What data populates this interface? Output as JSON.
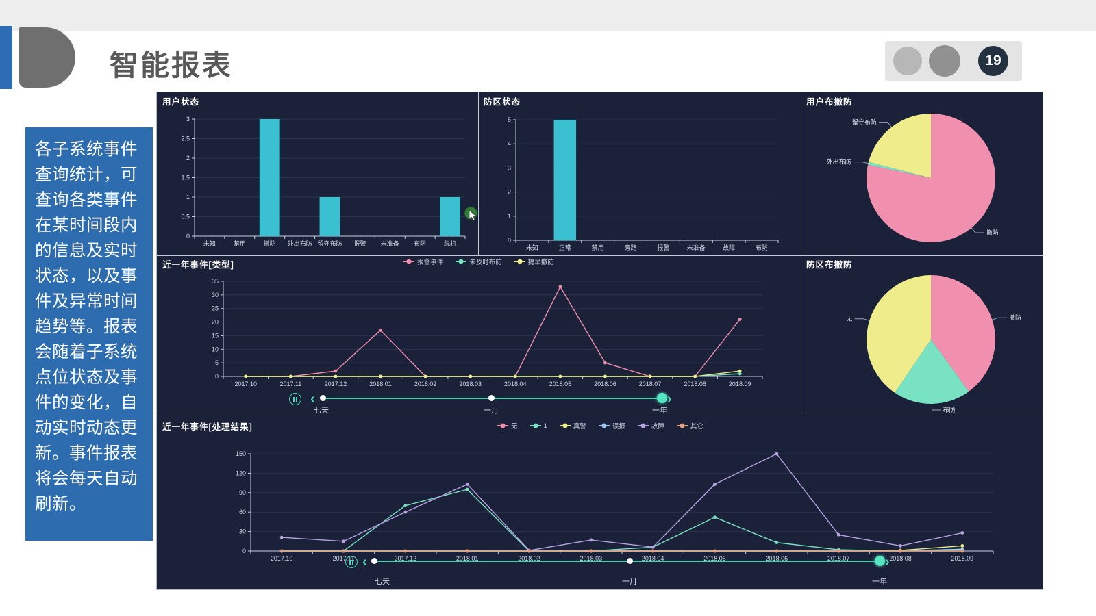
{
  "slide": {
    "title": "智能报表",
    "page_number": "19",
    "sidebar_text": "各子系统事件查询统计，可查询各类事件在某时间段内的信息及实时状态，以及事件及异常时间趋势等。报表会随着子系统点位状态及事件的变化，自动实时动态更新。事件报表将会每天自动刷新。"
  },
  "colors": {
    "accent_blue": "#2e6cb0",
    "dashboard_bg": "#1a2138",
    "bar_cyan": "#3ac0d0",
    "pink": "#f08fae",
    "yellow": "#eeec8b",
    "teal": "#79e2c3",
    "purple": "#b7a3e3",
    "blue": "#9ec9ef",
    "tan": "#e2a07e",
    "slider_teal": "#4ad9b8"
  },
  "icons": {
    "prev": "‹",
    "next": "›",
    "pause": "pause-icon"
  },
  "sliders": [
    {
      "labels": [
        "七天",
        "一月",
        "一年"
      ]
    },
    {
      "labels": [
        "七天",
        "一月",
        "一年"
      ]
    }
  ],
  "chart_data": [
    {
      "id": "user-status",
      "type": "bar",
      "title": "用户状态",
      "categories": [
        "未知",
        "禁用",
        "撤防",
        "外出布防",
        "留守布防",
        "报警",
        "未准备",
        "布防",
        "脱机"
      ],
      "values": [
        0,
        0,
        3,
        0,
        1,
        0,
        0,
        0,
        1
      ],
      "ylim": [
        0,
        3
      ],
      "ytick": 0.5,
      "bar_color": "#3ac0d0",
      "grid": true
    },
    {
      "id": "zone-status",
      "type": "bar",
      "title": "防区状态",
      "categories": [
        "未知",
        "正常",
        "禁用",
        "旁路",
        "报警",
        "未准备",
        "故障",
        "布防"
      ],
      "values": [
        0,
        5,
        0,
        0,
        0,
        0,
        0,
        0
      ],
      "ylim": [
        0,
        5
      ],
      "ytick": 1,
      "bar_color": "#3ac0d0",
      "grid": true
    },
    {
      "id": "user-arm",
      "type": "pie",
      "title": "用户布撤防",
      "slices": [
        {
          "label": "撤防",
          "value": 78.3,
          "color": "#f08fae"
        },
        {
          "label": "外出布防",
          "value": 0.7,
          "color": "#79e2c3"
        },
        {
          "label": "留守布防",
          "value": 21.0,
          "color": "#eeec8b"
        }
      ]
    },
    {
      "id": "events-type",
      "type": "line",
      "title": "近一年事件[类型]",
      "x": [
        "2017.10",
        "2017.11",
        "2017.12",
        "2018.01",
        "2018.02",
        "2018.03",
        "2018.04",
        "2018.05",
        "2018.06",
        "2018.07",
        "2018.08",
        "2018.09"
      ],
      "ylim": [
        0,
        35
      ],
      "ytick": 5,
      "legend_position": "top-center",
      "series": [
        {
          "name": "报警事件",
          "color": "#f08fae",
          "values": [
            0,
            0,
            2,
            17,
            0,
            0,
            0,
            33,
            5,
            0,
            0,
            21
          ]
        },
        {
          "name": "未及时布防",
          "color": "#79e2c3",
          "values": [
            0,
            0,
            0,
            0,
            0,
            0,
            0,
            0,
            0,
            0,
            0,
            1
          ]
        },
        {
          "name": "提早撤防",
          "color": "#eeec8b",
          "values": [
            0,
            0,
            0,
            0,
            0,
            0,
            0,
            0,
            0,
            0,
            0,
            2
          ]
        }
      ]
    },
    {
      "id": "zone-arm",
      "type": "pie",
      "title": "防区布撤防",
      "slices": [
        {
          "label": "撤防",
          "value": 40.0,
          "color": "#f08fae"
        },
        {
          "label": "布防",
          "value": 19.5,
          "color": "#79e2c3"
        },
        {
          "label": "无",
          "value": 40.5,
          "color": "#eeec8b"
        }
      ]
    },
    {
      "id": "events-result",
      "type": "line",
      "title": "近一年事件[处理结果]",
      "x": [
        "2017.10",
        "2017.11",
        "2017.12",
        "2018.01",
        "2018.02",
        "2018.03",
        "2018.04",
        "2018.05",
        "2018.06",
        "2018.07",
        "2018.08",
        "2018.09"
      ],
      "ylim": [
        0,
        150
      ],
      "ytick": 30,
      "legend_position": "top-center",
      "series": [
        {
          "name": "无",
          "color": "#f08fae",
          "values": [
            0,
            0,
            0,
            0,
            0,
            0,
            0,
            0,
            0,
            0,
            0,
            0
          ]
        },
        {
          "name": "1",
          "color": "#79e2c3",
          "values": [
            0,
            0,
            70,
            95,
            0,
            0,
            6,
            52,
            13,
            2,
            0,
            2
          ]
        },
        {
          "name": "真警",
          "color": "#eeec8b",
          "values": [
            0,
            0,
            0,
            0,
            0,
            0,
            0,
            0,
            0,
            0,
            1,
            8
          ]
        },
        {
          "name": "误报",
          "color": "#9ec9ef",
          "values": [
            0,
            0,
            0,
            0,
            0,
            0,
            0,
            0,
            0,
            0,
            0,
            3
          ]
        },
        {
          "name": "故障",
          "color": "#b7a3e3",
          "values": [
            21,
            15,
            60,
            103,
            1,
            17,
            6,
            103,
            150,
            25,
            8,
            28
          ]
        },
        {
          "name": "其它",
          "color": "#e2a07e",
          "values": [
            0,
            0,
            0,
            0,
            0,
            0,
            0,
            0,
            0,
            0,
            0,
            0
          ]
        }
      ]
    }
  ]
}
